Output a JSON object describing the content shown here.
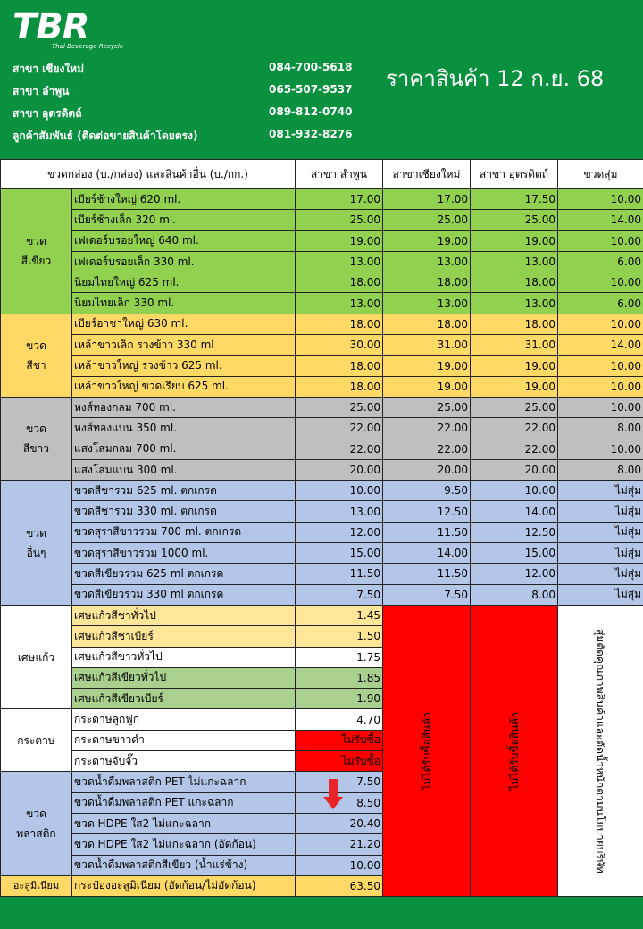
{
  "logo": {
    "text": "TBR",
    "subtitle": "Thai Beverage Recycle"
  },
  "title": "ราคาสินค้า 12 ก.ย. 68",
  "branches": [
    {
      "name": "สาขา เชียงใหม่",
      "phone": "084-700-5618"
    },
    {
      "name": "สาขา ลำพูน",
      "phone": "065-507-9537"
    },
    {
      "name": "สาขา อุตรดิตถ์",
      "phone": "089-812-0740"
    },
    {
      "name": "ลูกค้าสัมพันธ์ (ติดต่อขายสินค้าโดยตรง)",
      "phone": "081-932-8276"
    }
  ],
  "table": {
    "headers": [
      "ขวดกล่อง (บ./กล่อง) และสินค้าอื่น (บ./กก.)",
      "สาขา ลำพูน",
      "สาขาเชียงใหม่",
      "สาขา อุตรดิตถ์",
      "ขวดสุ่ม"
    ],
    "categories": {
      "green": [
        "ขวด",
        "สีเขียว"
      ],
      "amber": [
        "ขวด",
        "สีชา"
      ],
      "white": [
        "ขวด",
        "สีขาว"
      ],
      "other": [
        "ขวด",
        "อื่นๆ"
      ],
      "cullet": "เศษแก้ว",
      "paper": "กระดาษ",
      "plastic": [
        "ขวด",
        "พลาสติก"
      ],
      "aluminium": "อะลูมิเนียม"
    },
    "green_rows": [
      {
        "item": "เบียร์ช้างใหญ่ 620 ml.",
        "lamphun": "17.00",
        "chiangmai": "17.00",
        "uttaradit": "17.50",
        "random": "10.00"
      },
      {
        "item": "เบียร์ช้างเล็ก 320 ml.",
        "lamphun": "25.00",
        "chiangmai": "25.00",
        "uttaradit": "25.00",
        "random": "14.00"
      },
      {
        "item": "เฟเดอร์บรอยใหญ่ 640 ml.",
        "lamphun": "19.00",
        "chiangmai": "19.00",
        "uttaradit": "19.00",
        "random": "10.00"
      },
      {
        "item": "เฟเดอร์บรอยเล็ก 330 ml.",
        "lamphun": "13.00",
        "chiangmai": "13.00",
        "uttaradit": "13.00",
        "random": "6.00"
      },
      {
        "item": "นิยมไทยใหญ่  625 ml.",
        "lamphun": "18.00",
        "chiangmai": "18.00",
        "uttaradit": "18.00",
        "random": "10.00"
      },
      {
        "item": "นิยมไทยเล็ก  330 ml.",
        "lamphun": "13.00",
        "chiangmai": "13.00",
        "uttaradit": "13.00",
        "random": "6.00"
      }
    ],
    "amber_rows": [
      {
        "item": "เบียร์อาชาใหญ่ 630 ml.",
        "lamphun": "18.00",
        "chiangmai": "18.00",
        "uttaradit": "18.00",
        "random": "10.00"
      },
      {
        "item": "เหล้าขาวเล็ก รวงข้าว 330 ml",
        "lamphun": "30.00",
        "chiangmai": "31.00",
        "uttaradit": "31.00",
        "random": "14.00"
      },
      {
        "item": "เหล้าขาวใหญ่ รวงข้าว 625 ml.",
        "lamphun": "18.00",
        "chiangmai": "19.00",
        "uttaradit": "19.00",
        "random": "10.00"
      },
      {
        "item": "เหล้าขาวใหญ่ ขวดเรียบ 625 ml.",
        "lamphun": "18.00",
        "chiangmai": "19.00",
        "uttaradit": "19.00",
        "random": "10.00"
      }
    ],
    "white_rows": [
      {
        "item": "หงส์ทองกลม 700 ml.",
        "lamphun": "25.00",
        "chiangmai": "25.00",
        "uttaradit": "25.00",
        "random": "10.00"
      },
      {
        "item": "หงส์ทองแบน 350 ml.",
        "lamphun": "22.00",
        "chiangmai": "22.00",
        "uttaradit": "22.00",
        "random": "8.00"
      },
      {
        "item": "แสงโสมกลม 700 ml.",
        "lamphun": "22.00",
        "chiangmai": "22.00",
        "uttaradit": "22.00",
        "random": "10.00"
      },
      {
        "item": "แสงโสมแบน 300 ml.",
        "lamphun": "20.00",
        "chiangmai": "20.00",
        "uttaradit": "20.00",
        "random": "8.00"
      }
    ],
    "other_rows": [
      {
        "item": "ขวดสีชารวม 625 ml. ตกเกรด",
        "lamphun": "10.00",
        "chiangmai": "9.50",
        "uttaradit": "10.00",
        "random": "ไม่สุ่ม"
      },
      {
        "item": "ขวดสีชารวม 330 ml. ตกเกรด",
        "lamphun": "13.00",
        "chiangmai": "12.50",
        "uttaradit": "14.00",
        "random": "ไม่สุ่ม"
      },
      {
        "item": "ขวดสุราสีขาวรวม 700 ml. ตกเกรด",
        "lamphun": "12.00",
        "chiangmai": "11.50",
        "uttaradit": "12.50",
        "random": "ไม่สุ่ม"
      },
      {
        "item": "ขวดสุราสีขาวรวม 1000 ml.",
        "lamphun": "15.00",
        "chiangmai": "14.00",
        "uttaradit": "15.00",
        "random": "ไม่สุ่ม"
      },
      {
        "item": "ขวดสีเขียวรวม 625 ml ตกเกรด",
        "lamphun": "11.50",
        "chiangmai": "11.50",
        "uttaradit": "12.00",
        "random": "ไม่สุ่ม"
      },
      {
        "item": "ขวดสีเขียวรวม 330 ml ตกเกรด",
        "lamphun": "7.50",
        "chiangmai": "7.50",
        "uttaradit": "8.00",
        "random": "ไม่สุ่ม"
      }
    ],
    "cullet_rows": [
      {
        "item": "เศษแก้วสีชาทั่วไป",
        "lamphun": "1.45",
        "color": "#ffe699"
      },
      {
        "item": "เศษแก้วสีชาเบียร์",
        "lamphun": "1.50",
        "color": "#ffe699"
      },
      {
        "item": "เศษแก้วสีขาวทั่วไป",
        "lamphun": "1.75",
        "color": "#ffffff"
      },
      {
        "item": "เศษแก้วสีเขียวทั่วไป",
        "lamphun": "1.85",
        "color": "#a9d08e"
      },
      {
        "item": "เศษแก้วสีเขียวเบียร์",
        "lamphun": "1.90",
        "color": "#a9d08e"
      }
    ],
    "paper_rows": [
      {
        "item": "กระดาษลูกฟูก",
        "lamphun": "4.70",
        "rejected": false
      },
      {
        "item": "กระดาษขาวดำ",
        "lamphun": "ไม่รับซื้อ",
        "rejected": true
      },
      {
        "item": "กระดาษจับจั๊ว",
        "lamphun": "ไม่รับซื้อ",
        "rejected": true
      }
    ],
    "plastic_rows": [
      {
        "item": "ขวดน้ำดื่มพลาสติก PET ไม่แกะฉลาก",
        "lamphun": "7.50"
      },
      {
        "item": "ขวดน้ำดื่มพลาสติก PET แกะฉลาก",
        "lamphun": "8.50"
      },
      {
        "item": "ขวด HDPE ใส2 ไม่แกะฉลาก",
        "lamphun": "20.40"
      },
      {
        "item": "ขวด HDPE ใส2 ไม่แกะฉลาก (อัดก้อน)",
        "lamphun": "21.20"
      },
      {
        "item": "ขวดน้ำดื่มพลาสติกสีเขียว (น้ำแร่ช้าง)",
        "lamphun": "10.00"
      }
    ],
    "aluminium_rows": [
      {
        "item": "กระป๋องอะลูมิเนียม (อัดก้อน/ไม่อัดก้อน)",
        "lamphun": "63.50"
      }
    ],
    "not_buying": "ไม่ได้รับซื้อสินค้า",
    "random_note": "สุ่มตัดคุณภาพสินค้าและตัดน้ำหนักตามนโยบายบริษัท",
    "colors": {
      "red": "#ff0000",
      "green_bg": "#0a9140",
      "down_arrow": "#e8262a"
    }
  }
}
